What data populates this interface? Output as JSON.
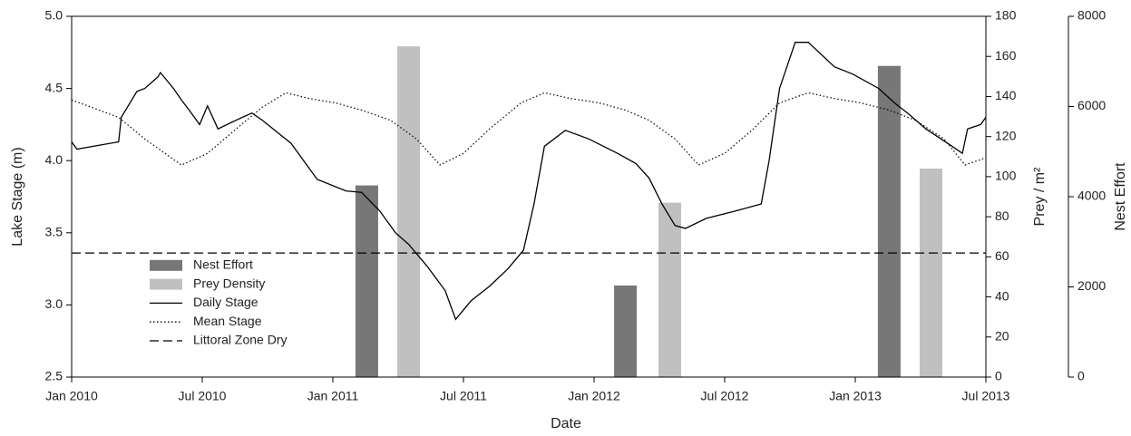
{
  "chart_data": {
    "type": "combo",
    "xlabel": "Date",
    "ylabel": "Lake Stage (m)",
    "y2label": "Prey / m²",
    "y3label": "Nest Effort",
    "xlim": [
      2010,
      2013.5
    ],
    "xticks": [
      {
        "value": 2010,
        "label": "Jan 2010"
      },
      {
        "value": 2010.5,
        "label": "Jul 2010"
      },
      {
        "value": 2011,
        "label": "Jan 2011"
      },
      {
        "value": 2011.5,
        "label": "Jul 2011"
      },
      {
        "value": 2012,
        "label": "Jan 2012"
      },
      {
        "value": 2012.5,
        "label": "Jul 2012"
      },
      {
        "value": 2013,
        "label": "Jan 2013"
      },
      {
        "value": 2013.5,
        "label": "Jul 2013"
      }
    ],
    "ylim": [
      2.5,
      5.0
    ],
    "yticks": [
      2.5,
      {
        "value": 3.0,
        "label": "3.0"
      },
      3.5,
      {
        "value": 4.0,
        "label": "4.0"
      },
      4.5,
      {
        "value": 5.0,
        "label": "5.0"
      }
    ],
    "y2lim": [
      0,
      180
    ],
    "y2ticks": [
      0,
      20,
      40,
      60,
      80,
      100,
      120,
      140,
      160,
      180
    ],
    "y3lim": [
      0,
      8000
    ],
    "y3ticks": [
      0,
      2000,
      4000,
      6000,
      8000
    ],
    "legend": "lower left",
    "series": [
      {
        "name": "Nest Effort",
        "type": "bar",
        "axis": "y3",
        "color": "#777777",
        "x": [
          2011.13,
          2012.12,
          2013.13
        ],
        "values": [
          4250,
          2030,
          6900
        ]
      },
      {
        "name": "Prey Density",
        "type": "bar",
        "axis": "y2",
        "color": "#c0c0c0",
        "x": [
          2011.29,
          2012.29,
          2013.29
        ],
        "values": [
          165,
          87,
          104
        ]
      },
      {
        "name": "Daily Stage",
        "type": "line",
        "axis": "y",
        "color": "#000000",
        "style": "solid",
        "x": [
          2010.0,
          2010.02,
          2010.18,
          2010.19,
          2010.25,
          2010.28,
          2010.33,
          2010.34,
          2010.39,
          2010.42,
          2010.45,
          2010.49,
          2010.52,
          2010.56,
          2010.63,
          2010.69,
          2010.73,
          2010.84,
          2010.94,
          2011.05,
          2011.11,
          2011.18,
          2011.24,
          2011.29,
          2011.36,
          2011.43,
          2011.47,
          2011.53,
          2011.6,
          2011.67,
          2011.73,
          2011.77,
          2011.81,
          2011.89,
          2011.98,
          2012.09,
          2012.16,
          2012.21,
          2012.26,
          2012.31,
          2012.35,
          2012.43,
          2012.54,
          2012.64,
          2012.67,
          2012.71,
          2012.77,
          2012.82,
          2012.92,
          2012.99,
          2013.09,
          2013.15,
          2013.2,
          2013.27,
          2013.37,
          2013.41,
          2013.43,
          2013.48,
          2013.5
        ],
        "values": [
          4.13,
          4.08,
          4.13,
          4.3,
          4.48,
          4.5,
          4.58,
          4.61,
          4.5,
          4.42,
          4.35,
          4.25,
          4.38,
          4.22,
          4.28,
          4.33,
          4.28,
          4.12,
          3.87,
          3.79,
          3.78,
          3.65,
          3.5,
          3.42,
          3.27,
          3.1,
          2.9,
          3.03,
          3.13,
          3.25,
          3.38,
          3.7,
          4.1,
          4.21,
          4.15,
          4.05,
          3.98,
          3.88,
          3.7,
          3.55,
          3.53,
          3.6,
          3.65,
          3.7,
          4.0,
          4.5,
          4.82,
          4.82,
          4.65,
          4.6,
          4.5,
          4.4,
          4.33,
          4.22,
          4.1,
          4.05,
          4.22,
          4.25,
          4.3
        ]
      },
      {
        "name": "Mean Stage",
        "type": "line",
        "axis": "y",
        "color": "#000000",
        "style": "dotted",
        "x": [
          2010.0,
          2010.18,
          2010.28,
          2010.42,
          2010.52,
          2010.63,
          2010.73,
          2010.82,
          2010.91,
          2011.01,
          2011.11,
          2011.22,
          2011.32,
          2011.41,
          2011.5,
          2011.6,
          2011.72,
          2011.81,
          2011.91,
          2012.02,
          2012.12,
          2012.21,
          2012.31,
          2012.4,
          2012.5,
          2012.61,
          2012.71,
          2012.82,
          2012.92,
          2013.02,
          2013.13,
          2013.23,
          2013.34,
          2013.42,
          2013.5
        ],
        "values": [
          4.42,
          4.3,
          4.15,
          3.97,
          4.05,
          4.22,
          4.37,
          4.47,
          4.43,
          4.4,
          4.35,
          4.28,
          4.15,
          3.97,
          4.05,
          4.22,
          4.4,
          4.47,
          4.43,
          4.4,
          4.35,
          4.28,
          4.15,
          3.97,
          4.05,
          4.22,
          4.4,
          4.47,
          4.43,
          4.4,
          4.35,
          4.28,
          4.15,
          3.97,
          4.02
        ]
      },
      {
        "name": "Littoral Zone Dry",
        "type": "line",
        "axis": "y",
        "color": "#000000",
        "style": "dashed",
        "x": [
          2010,
          2013.5
        ],
        "values": [
          3.36,
          3.36
        ]
      }
    ]
  }
}
